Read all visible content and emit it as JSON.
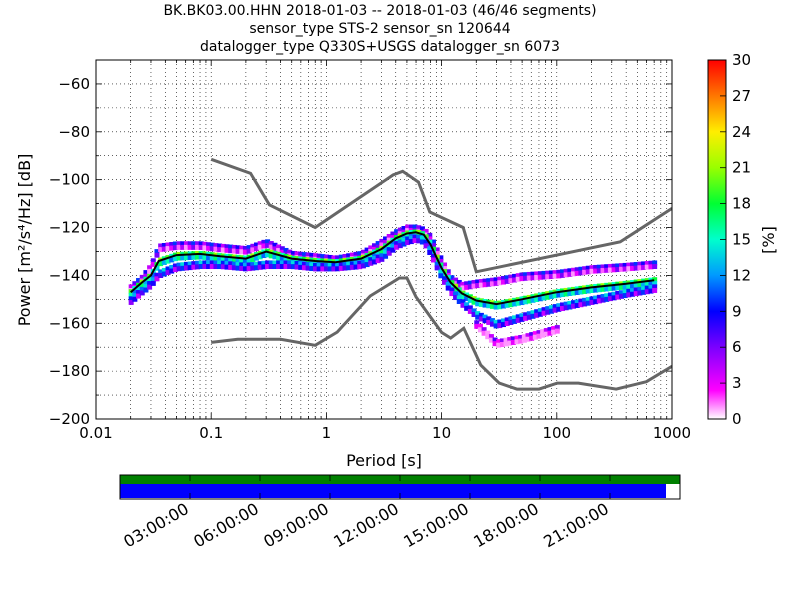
{
  "chart_data": {
    "type": "heatmap",
    "title_lines": [
      "BK.BK03.00.HHN   2018-01-03 -- 2018-01-03  (46/46 segments)",
      "sensor_type STS-2 sensor_sn 120644",
      "datalogger_type Q330S+USGS datalogger_sn 6073"
    ],
    "xlabel": "Period [s]",
    "ylabel": "Power [m²/s⁴/Hz] [dB]",
    "xscale": "log",
    "xlim": [
      0.01,
      1000
    ],
    "ylim": [
      -200,
      -50
    ],
    "x_tick_labels": [
      "0.01",
      "0.1",
      "1",
      "10",
      "100",
      "1000"
    ],
    "y_tick_labels": [
      "−60",
      "−80",
      "−100",
      "−120",
      "−140",
      "−160",
      "−180",
      "−200"
    ],
    "grid": true,
    "colorbar": {
      "label": "[%]",
      "range": [
        0,
        30
      ],
      "tick_labels": [
        "0",
        "3",
        "6",
        "9",
        "12",
        "15",
        "18",
        "21",
        "24",
        "27",
        "30"
      ]
    },
    "noise_models": {
      "nhnm": {
        "x": [
          0.1,
          0.22,
          0.32,
          0.8,
          3.8,
          4.6,
          6.3,
          7.9,
          15.4,
          20,
          354.8,
          1000
        ],
        "y": [
          -91.5,
          -97.4,
          -110.5,
          -120,
          -98,
          -96.5,
          -101,
          -113.5,
          -120,
          -138.5,
          -126,
          -112
        ]
      },
      "nlnm": {
        "x": [
          0.1,
          0.17,
          0.4,
          0.8,
          1.24,
          2.4,
          4.3,
          5,
          6,
          10,
          12,
          15.6,
          21.9,
          31.6,
          45,
          70,
          101,
          154,
          328,
          600,
          1000
        ],
        "y": [
          -168,
          -166.7,
          -166.7,
          -169.2,
          -163.7,
          -148.6,
          -141.1,
          -141.1,
          -149,
          -163.8,
          -166.2,
          -162.1,
          -177.5,
          -185,
          -187.5,
          -187.5,
          -185,
          -185,
          -187.5,
          -184.4,
          -178
        ]
      }
    },
    "median_psd": {
      "x": [
        0.02,
        0.025,
        0.03,
        0.035,
        0.05,
        0.08,
        0.12,
        0.2,
        0.3,
        0.5,
        0.8,
        1.2,
        2,
        3,
        4,
        5,
        6,
        7,
        8,
        10,
        12,
        15,
        20,
        30,
        50,
        100,
        200,
        400,
        700
      ],
      "y": [
        -147,
        -143,
        -140,
        -134,
        -131.5,
        -131,
        -132,
        -133,
        -130,
        -133,
        -134,
        -134.5,
        -133,
        -129,
        -124.5,
        -122.5,
        -122,
        -123,
        -127,
        -137,
        -143,
        -147.5,
        -150.5,
        -152,
        -150,
        -147,
        -145,
        -143.5,
        -142
      ]
    },
    "psd_bands": [
      {
        "x": [
          0.02,
          0.025,
          0.03,
          0.035,
          0.05,
          0.08,
          0.12,
          0.2,
          0.3,
          0.5,
          0.8,
          1.2,
          2,
          3,
          4,
          5,
          6,
          7,
          8,
          10,
          12,
          15,
          20,
          30,
          50,
          100,
          200,
          400,
          700
        ],
        "y": [
          -145,
          -141,
          -136,
          -128,
          -127,
          -127,
          -128,
          -129,
          -126,
          -131,
          -132,
          -133,
          -131,
          -126,
          -122,
          -120,
          -120,
          -121,
          -124,
          -134,
          -141,
          -144,
          -143,
          -142,
          -140,
          -139,
          -137,
          -136,
          -135
        ],
        "percent": 7
      },
      {
        "x": [
          0.02,
          0.025,
          0.03,
          0.035,
          0.05,
          0.08,
          0.12,
          0.2,
          0.3,
          0.5,
          0.8,
          1.2,
          2,
          3,
          4,
          5,
          6,
          7,
          8,
          10,
          12,
          15,
          20,
          30,
          50,
          100,
          200,
          400,
          700
        ],
        "y": [
          -147,
          -143,
          -140,
          -134,
          -131.5,
          -131,
          -132,
          -133,
          -130,
          -133,
          -134,
          -134.5,
          -133,
          -129,
          -124.5,
          -122.5,
          -122,
          -123,
          -127,
          -137,
          -143,
          -147.5,
          -150.5,
          -152,
          -150,
          -147,
          -145,
          -143.5,
          -142
        ],
        "percent": 18
      },
      {
        "x": [
          0.02,
          0.025,
          0.03,
          0.035,
          0.05,
          0.08,
          0.12,
          0.2,
          0.3,
          0.5,
          0.8,
          1.2,
          2,
          3,
          4,
          5,
          6,
          7,
          8,
          10,
          12,
          15,
          20,
          30,
          50,
          100,
          200,
          400,
          700
        ],
        "y": [
          -150,
          -146,
          -143,
          -139,
          -136,
          -135,
          -135,
          -136,
          -135,
          -135,
          -136,
          -136,
          -135,
          -132,
          -127,
          -125,
          -124,
          -125,
          -130,
          -140,
          -146,
          -151,
          -156,
          -160,
          -157,
          -153,
          -150,
          -147,
          -145
        ],
        "percent": 11
      },
      {
        "x": [
          20,
          30,
          50,
          100
        ],
        "y": [
          -160,
          -168,
          -166,
          -162
        ],
        "percent": 4
      }
    ],
    "time_axis": {
      "tick_labels": [
        "03:00:00",
        "06:00:00",
        "09:00:00",
        "12:00:00",
        "15:00:00",
        "18:00:00",
        "21:00:00"
      ],
      "data_coverage_fraction": 1.0,
      "gap_free_fraction": 0.975,
      "colors": {
        "coverage": "#008000",
        "gap_free": "#0000ff"
      }
    }
  }
}
